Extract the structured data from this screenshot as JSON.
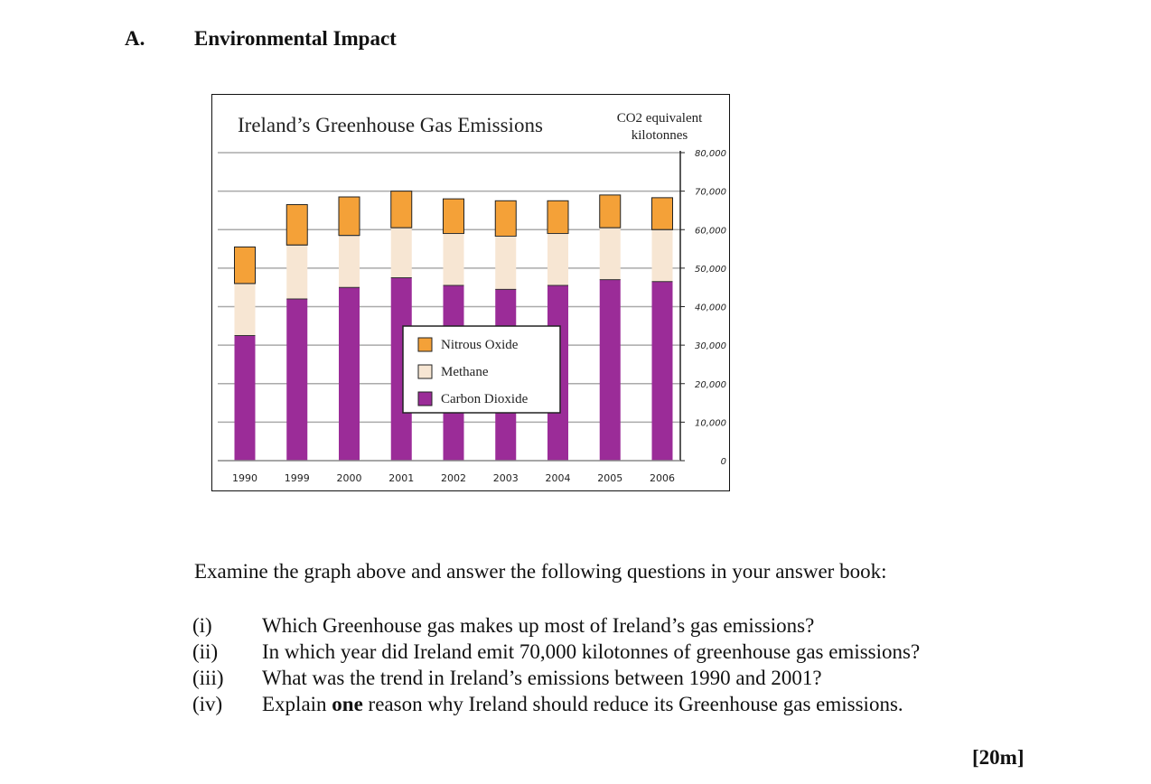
{
  "section": {
    "letter": "A.",
    "title": "Environmental Impact"
  },
  "chart_data": {
    "type": "bar",
    "stacked": true,
    "title": "Ireland’s Greenhouse Gas Emissions",
    "ylabel_line1": "CO2 equivalent",
    "ylabel_line2": "kilotonnes",
    "categories": [
      "1990",
      "1999",
      "2000",
      "2001",
      "2002",
      "2003",
      "2004",
      "2005",
      "2006"
    ],
    "series": [
      {
        "name": "Carbon Dioxide",
        "color": "#9b2c98",
        "values": [
          32500,
          42000,
          45000,
          47500,
          45500,
          44500,
          45500,
          47000,
          46500
        ]
      },
      {
        "name": "Methane",
        "color": "#f7e6d3",
        "values": [
          13500,
          14000,
          13500,
          13000,
          13500,
          13800,
          13500,
          13500,
          13500
        ]
      },
      {
        "name": "Nitrous Oxide",
        "color": "#f4a138",
        "values": [
          9500,
          10500,
          10000,
          9500,
          9000,
          9200,
          8500,
          8500,
          8300
        ]
      }
    ],
    "legend": [
      "Nitrous Oxide",
      "Methane",
      "Carbon Dioxide"
    ],
    "yticks": [
      "0",
      "10,000",
      "20,000",
      "30,000",
      "40,000",
      "50,000",
      "60,000",
      "70,000",
      "80,000"
    ],
    "ylim": [
      0,
      80000
    ],
    "legend_position": "center",
    "grid": true
  },
  "instruction": "Examine the graph above and answer the following questions in your answer book:",
  "questions": [
    {
      "num": "(i)",
      "text": "Which Greenhouse gas makes up most of Ireland’s gas emissions?"
    },
    {
      "num": "(ii)",
      "text": "In which year did Ireland emit 70,000 kilotonnes of greenhouse gas emissions?"
    },
    {
      "num": "(iii)",
      "text": "What was the trend in Ireland’s emissions between 1990 and 2001?"
    },
    {
      "num": "(iv)",
      "text_before": "Explain ",
      "text_bold": "one",
      "text_after": " reason why Ireland should reduce its Greenhouse gas emissions."
    }
  ],
  "marks": "[20m]"
}
